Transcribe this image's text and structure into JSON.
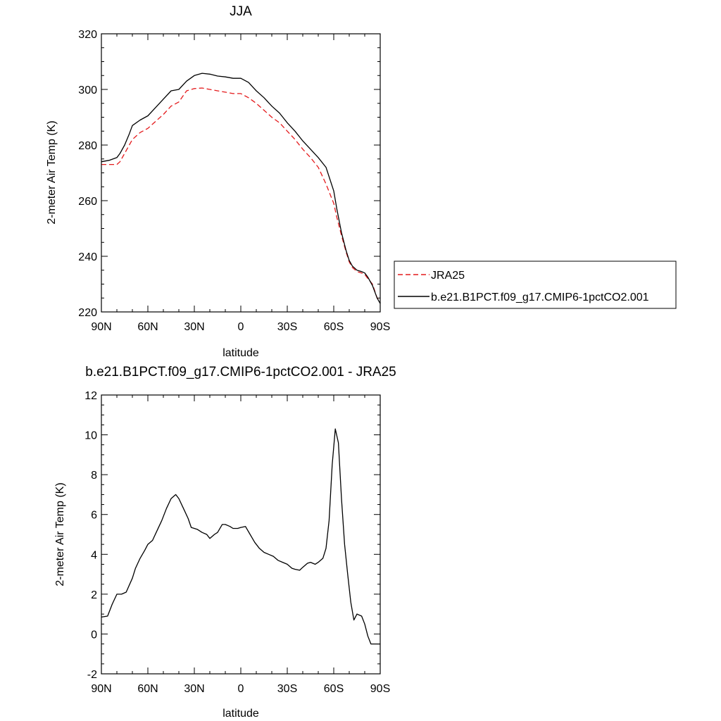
{
  "chart_data": [
    {
      "type": "line",
      "title": "JJA",
      "xlabel": "latitude",
      "ylabel": "2-meter Air Temp (K)",
      "xlim": [
        -90,
        90
      ],
      "ylim": [
        220,
        320
      ],
      "x_ticks": [
        {
          "value": -90,
          "label": "90N"
        },
        {
          "value": -60,
          "label": "60N"
        },
        {
          "value": -30,
          "label": "30N"
        },
        {
          "value": 0,
          "label": "0"
        },
        {
          "value": 30,
          "label": "30S"
        },
        {
          "value": 60,
          "label": "60S"
        },
        {
          "value": 90,
          "label": "90S"
        }
      ],
      "y_ticks": [
        220,
        240,
        260,
        280,
        300,
        320
      ],
      "legend": {
        "placement": "right-outside",
        "entries": [
          "JRA25",
          "b.e21.B1PCT.f09_g17.CMIP6-1pctCO2.001"
        ]
      },
      "series": [
        {
          "name": "JRA25",
          "color": "#e41a1c",
          "dash": "dashed",
          "x": [
            -90,
            -85,
            -80,
            -78,
            -75,
            -72,
            -70,
            -65,
            -60,
            -55,
            -50,
            -45,
            -40,
            -35,
            -30,
            -25,
            -20,
            -15,
            -10,
            -5,
            0,
            5,
            10,
            15,
            20,
            25,
            30,
            35,
            40,
            45,
            50,
            55,
            60,
            62,
            65,
            68,
            70,
            72,
            75,
            78,
            80,
            82,
            85,
            88,
            90
          ],
          "values": [
            273,
            273,
            273,
            274,
            277,
            280,
            282,
            284.5,
            286,
            288.5,
            291,
            294,
            295.5,
            299.5,
            300.3,
            300.5,
            300,
            299.5,
            299,
            298.5,
            298.5,
            297,
            295,
            292.5,
            290,
            288,
            285,
            282,
            278.5,
            275.5,
            272,
            266,
            259,
            254,
            247.5,
            241.5,
            238,
            236,
            234.5,
            234,
            233.5,
            232,
            230,
            225,
            224
          ]
        },
        {
          "name": "b.e21.B1PCT.f09_g17.CMIP6-1pctCO2.001",
          "color": "#000000",
          "dash": "solid",
          "x": [
            -90,
            -85,
            -80,
            -78,
            -75,
            -72,
            -70,
            -65,
            -60,
            -55,
            -50,
            -45,
            -40,
            -35,
            -30,
            -25,
            -20,
            -15,
            -10,
            -5,
            0,
            5,
            10,
            15,
            20,
            25,
            30,
            35,
            40,
            45,
            50,
            55,
            60,
            62,
            65,
            68,
            70,
            72,
            75,
            78,
            80,
            82,
            85,
            88,
            90
          ],
          "values": [
            274,
            274.5,
            275.5,
            277,
            280,
            284,
            287,
            289,
            290.5,
            293.5,
            296.5,
            299.5,
            300,
            303,
            305,
            305.8,
            305.5,
            304.8,
            304.5,
            304,
            304,
            302.5,
            299.5,
            297,
            294,
            291.5,
            288,
            285,
            281.5,
            278.5,
            275.5,
            272,
            263.5,
            257,
            248.5,
            242,
            238.5,
            236.5,
            235,
            234.5,
            234,
            232.5,
            229.5,
            225,
            223
          ]
        }
      ]
    },
    {
      "type": "line",
      "title": "b.e21.B1PCT.f09_g17.CMIP6-1pctCO2.001 - JRA25",
      "xlabel": "latitude",
      "ylabel": "2-meter Air Temp (K)",
      "xlim": [
        -90,
        90
      ],
      "ylim": [
        -2,
        12
      ],
      "x_ticks": [
        {
          "value": -90,
          "label": "90N"
        },
        {
          "value": -60,
          "label": "60N"
        },
        {
          "value": -30,
          "label": "30N"
        },
        {
          "value": 0,
          "label": "0"
        },
        {
          "value": 30,
          "label": "30S"
        },
        {
          "value": 60,
          "label": "60S"
        },
        {
          "value": 90,
          "label": "90S"
        }
      ],
      "y_ticks": [
        -2,
        0,
        2,
        4,
        6,
        8,
        10,
        12
      ],
      "series": [
        {
          "color": "#000000",
          "dash": "solid",
          "x": [
            -90,
            -86,
            -83,
            -80,
            -77,
            -74,
            -70,
            -68,
            -65,
            -62,
            -60,
            -57,
            -54,
            -51,
            -48,
            -45,
            -42,
            -40,
            -37,
            -34,
            -32,
            -28,
            -25,
            -22,
            -20,
            -17,
            -15,
            -12,
            -10,
            -7,
            -5,
            -2,
            0,
            3,
            6,
            9,
            12,
            15,
            18,
            21,
            24,
            27,
            30,
            33,
            35,
            38,
            40,
            43,
            45,
            48,
            50,
            53,
            55,
            57,
            59,
            61,
            63,
            65,
            67,
            69,
            71,
            73,
            75,
            78,
            80,
            82,
            84,
            86,
            88,
            90
          ],
          "values": [
            0.85,
            0.9,
            1.5,
            2.0,
            2.0,
            2.1,
            2.8,
            3.3,
            3.8,
            4.2,
            4.5,
            4.7,
            5.2,
            5.7,
            6.3,
            6.8,
            7.0,
            6.8,
            6.3,
            5.8,
            5.35,
            5.25,
            5.1,
            5.0,
            4.8,
            5.0,
            5.1,
            5.5,
            5.5,
            5.4,
            5.3,
            5.3,
            5.35,
            5.4,
            5.0,
            4.6,
            4.3,
            4.1,
            4.0,
            3.9,
            3.7,
            3.6,
            3.5,
            3.3,
            3.25,
            3.2,
            3.35,
            3.55,
            3.6,
            3.5,
            3.6,
            3.8,
            4.3,
            5.7,
            8.5,
            10.3,
            9.6,
            6.8,
            4.5,
            3.0,
            1.6,
            0.7,
            1.0,
            0.9,
            0.5,
            -0.1,
            -0.5,
            -0.5,
            -0.5,
            -0.5
          ]
        }
      ]
    }
  ]
}
